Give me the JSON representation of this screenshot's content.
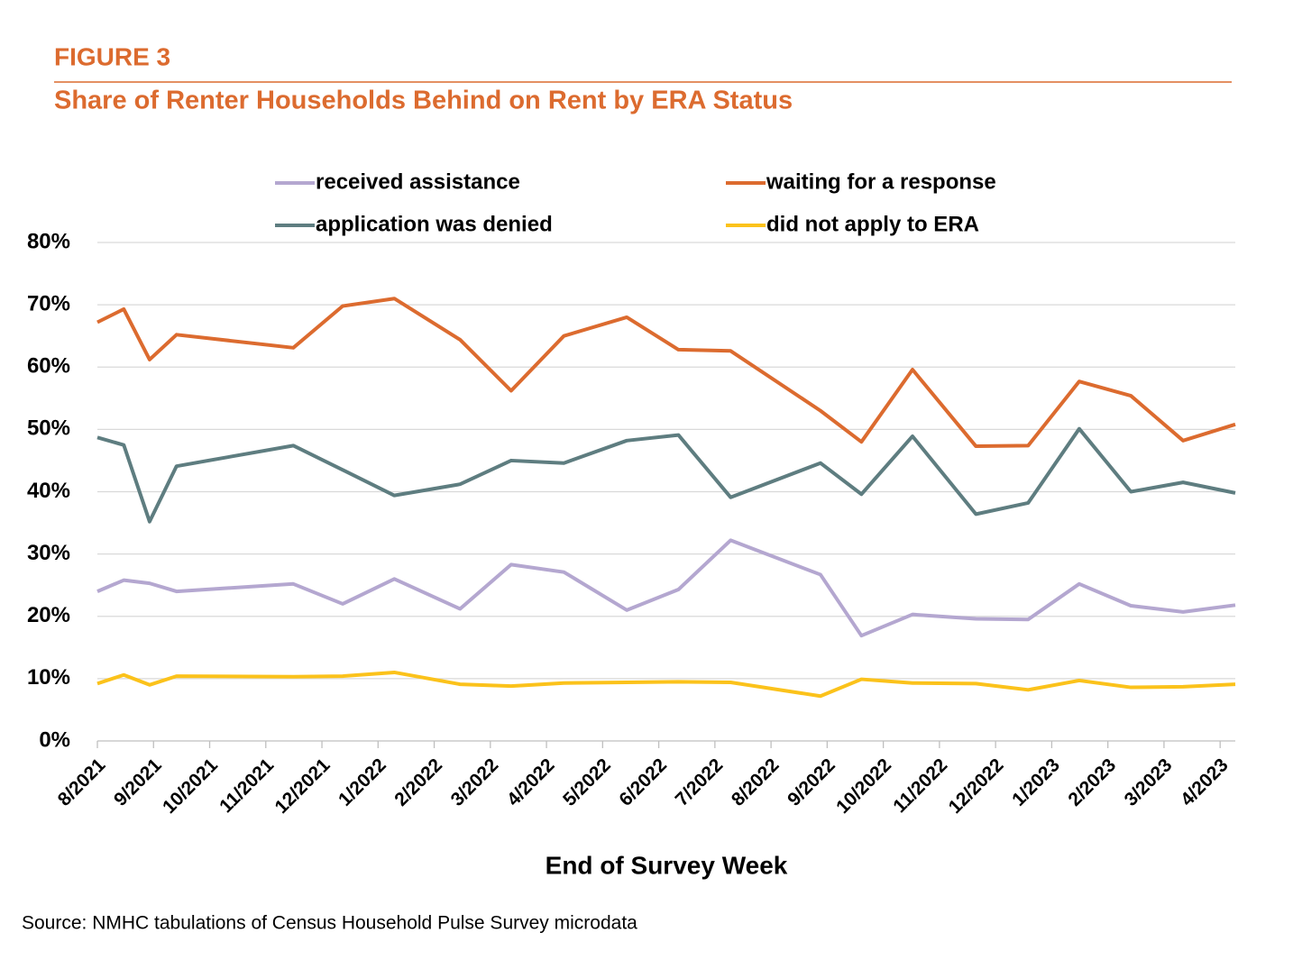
{
  "chart_data": {
    "type": "line",
    "figure_label": "FIGURE 3",
    "title": "Share of Renter Households Behind on Rent by ERA Status",
    "xlabel": "End of Survey Week",
    "source": "Source: NMHC tabulations of Census Household Pulse Survey microdata",
    "x": [
      0,
      0.47,
      0.93,
      1.41,
      3.49,
      4.37,
      5.29,
      6.46,
      7.37,
      8.31,
      9.43,
      10.35,
      11.28,
      12.88,
      13.61,
      14.52,
      15.65,
      16.58,
      17.49,
      18.41,
      19.34,
      20.27
    ],
    "xlim": [
      0,
      20.27
    ],
    "xticks": [
      {
        "value": 0,
        "label": "8/2021"
      },
      {
        "value": 1,
        "label": "9/2021"
      },
      {
        "value": 2,
        "label": "10/2021"
      },
      {
        "value": 3,
        "label": "11/2021"
      },
      {
        "value": 4,
        "label": "12/2021"
      },
      {
        "value": 5,
        "label": "1/2022"
      },
      {
        "value": 6,
        "label": "2/2022"
      },
      {
        "value": 7,
        "label": "3/2022"
      },
      {
        "value": 8,
        "label": "4/2022"
      },
      {
        "value": 9,
        "label": "5/2022"
      },
      {
        "value": 10,
        "label": "6/2022"
      },
      {
        "value": 11,
        "label": "7/2022"
      },
      {
        "value": 12,
        "label": "8/2022"
      },
      {
        "value": 13,
        "label": "9/2022"
      },
      {
        "value": 14,
        "label": "10/2022"
      },
      {
        "value": 15,
        "label": "11/2022"
      },
      {
        "value": 16,
        "label": "12/2022"
      },
      {
        "value": 17,
        "label": "1/2023"
      },
      {
        "value": 18,
        "label": "2/2023"
      },
      {
        "value": 19,
        "label": "3/2023"
      },
      {
        "value": 20,
        "label": "4/2023"
      }
    ],
    "ylim": [
      0,
      80
    ],
    "yticks": [
      {
        "value": 0,
        "label": "0%"
      },
      {
        "value": 10,
        "label": "10%"
      },
      {
        "value": 20,
        "label": "20%"
      },
      {
        "value": 30,
        "label": "30%"
      },
      {
        "value": 40,
        "label": "40%"
      },
      {
        "value": 50,
        "label": "50%"
      },
      {
        "value": 60,
        "label": "60%"
      },
      {
        "value": 70,
        "label": "70%"
      },
      {
        "value": 80,
        "label": "80%"
      }
    ],
    "grid": true,
    "legend": "top",
    "series": [
      {
        "name": "received assistance",
        "color": "#b4a7d0",
        "values": [
          24,
          25.8,
          25.3,
          24,
          25.2,
          22,
          26,
          21.2,
          28.3,
          27.1,
          21,
          24.3,
          32.2,
          26.7,
          16.9,
          20.3,
          19.6,
          19.5,
          25.2,
          21.7,
          20.7,
          21.8
        ]
      },
      {
        "name": "waiting for a response",
        "color": "#dc6b2f",
        "values": [
          67.2,
          69.3,
          61.2,
          65.2,
          63.1,
          69.8,
          71,
          64.4,
          56.2,
          65,
          68,
          62.8,
          62.6,
          53,
          48,
          59.6,
          47.3,
          47.4,
          57.7,
          55.4,
          48.2,
          50.8
        ]
      },
      {
        "name": "application was denied",
        "color": "#5e7d80",
        "values": [
          48.7,
          47.5,
          35.2,
          44.1,
          47.4,
          43.5,
          39.4,
          41.2,
          45,
          44.6,
          48.2,
          49.1,
          39.1,
          44.6,
          39.6,
          48.9,
          36.4,
          38.2,
          50.1,
          40,
          41.5,
          39.8
        ]
      },
      {
        "name": "did not apply to ERA",
        "color": "#fbc21b",
        "values": [
          9.2,
          10.6,
          9.0,
          10.4,
          10.3,
          10.4,
          11,
          9.1,
          8.8,
          9.3,
          9.4,
          9.5,
          9.4,
          7.2,
          9.9,
          9.3,
          9.2,
          8.2,
          9.7,
          8.6,
          8.7,
          9.1
        ]
      }
    ]
  }
}
